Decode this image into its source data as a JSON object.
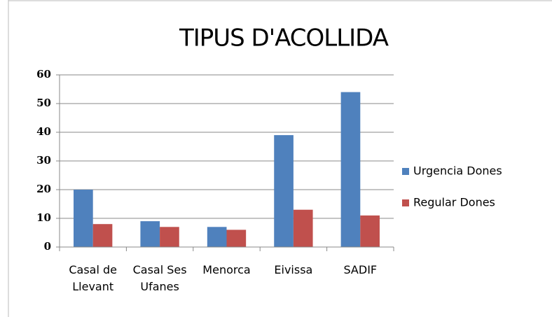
{
  "chart_data": {
    "type": "bar",
    "title": "TIPUS D'ACOLLIDA",
    "categories": [
      "Casal de Llevant",
      "Casal Ses Ufanes",
      "Menorca",
      "Eivissa",
      "SADIF"
    ],
    "series": [
      {
        "name": "Urgencia Dones",
        "color": "#4f81bd",
        "values": [
          20,
          9,
          7,
          39,
          54
        ]
      },
      {
        "name": "Regular Dones",
        "color": "#c0504d",
        "values": [
          8,
          7,
          6,
          13,
          11
        ]
      }
    ],
    "ylim": [
      0,
      60
    ],
    "yticks": [
      0,
      10,
      20,
      30,
      40,
      50,
      60
    ],
    "grid": true,
    "legend": "right"
  }
}
